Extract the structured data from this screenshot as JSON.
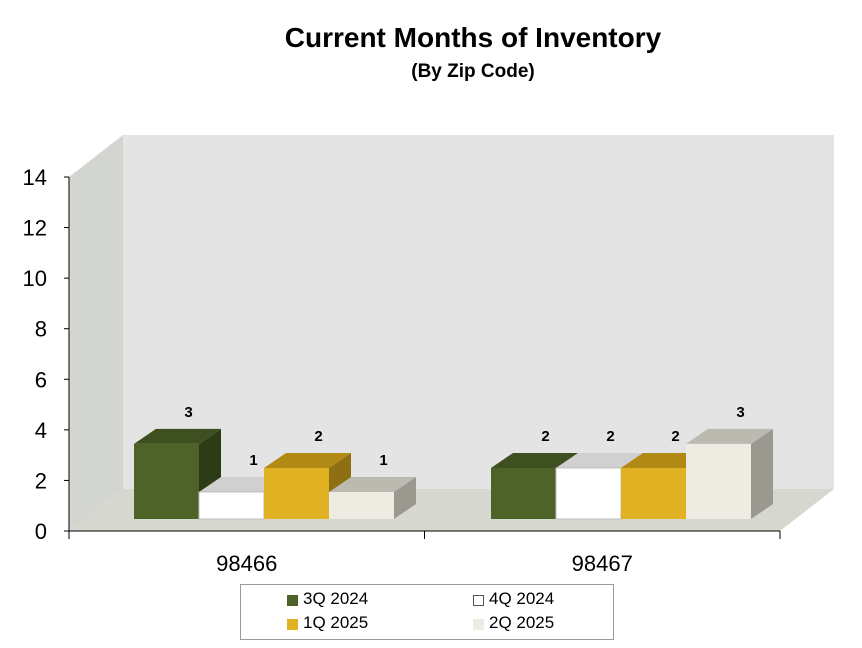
{
  "chart_data": {
    "type": "bar",
    "title": "Current Months of Inventory",
    "subtitle": "(By Zip Code)",
    "categories": [
      "98466",
      "98467"
    ],
    "series": [
      {
        "name": "3Q 2024",
        "values": [
          3,
          2
        ],
        "labels": [
          "3",
          "2"
        ],
        "color": "#4e6328",
        "side": "#2e3c16",
        "top": "#3e5020"
      },
      {
        "name": "4Q 2024",
        "values": [
          1,
          2
        ],
        "labels": [
          "1",
          "2"
        ],
        "color": "#ffffff",
        "side": "#bfbfbf",
        "top": "#d0d0d0"
      },
      {
        "name": "1Q 2025",
        "values": [
          2,
          2
        ],
        "labels": [
          "2",
          "2"
        ],
        "color": "#dfb123",
        "side": "#8e6f12",
        "top": "#b08a15"
      },
      {
        "name": "2Q 2025",
        "values": [
          1,
          3
        ],
        "labels": [
          "1",
          "3"
        ],
        "color": "#edebe2",
        "side": "#9a988f",
        "top": "#bcb9b0"
      }
    ],
    "ylim": [
      0,
      14
    ],
    "yticks": [
      0,
      2,
      4,
      6,
      8,
      10,
      12,
      14
    ],
    "xlabel": "",
    "ylabel": "",
    "legend_position": "bottom",
    "grid": false
  }
}
